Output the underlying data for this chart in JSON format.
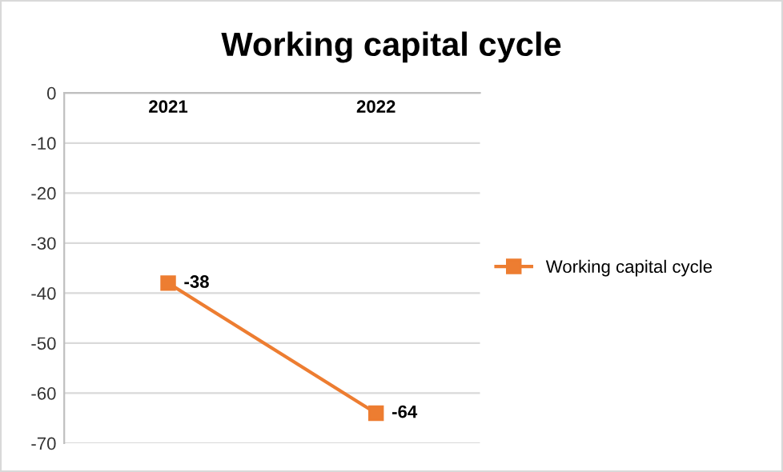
{
  "chart_data": {
    "type": "line",
    "title": "Working capital cycle",
    "categories": [
      "2021",
      "2022"
    ],
    "series": [
      {
        "name": "Working capital cycle",
        "color": "#ed7d31",
        "values": [
          -38,
          -64
        ]
      }
    ],
    "ylim": [
      -70,
      0
    ],
    "yticks": [
      0,
      -10,
      -20,
      -30,
      -40,
      -50,
      -60,
      -70
    ],
    "grid": "y",
    "legend": "right",
    "marker": "square",
    "line_style": "solid",
    "data_labels": true
  }
}
